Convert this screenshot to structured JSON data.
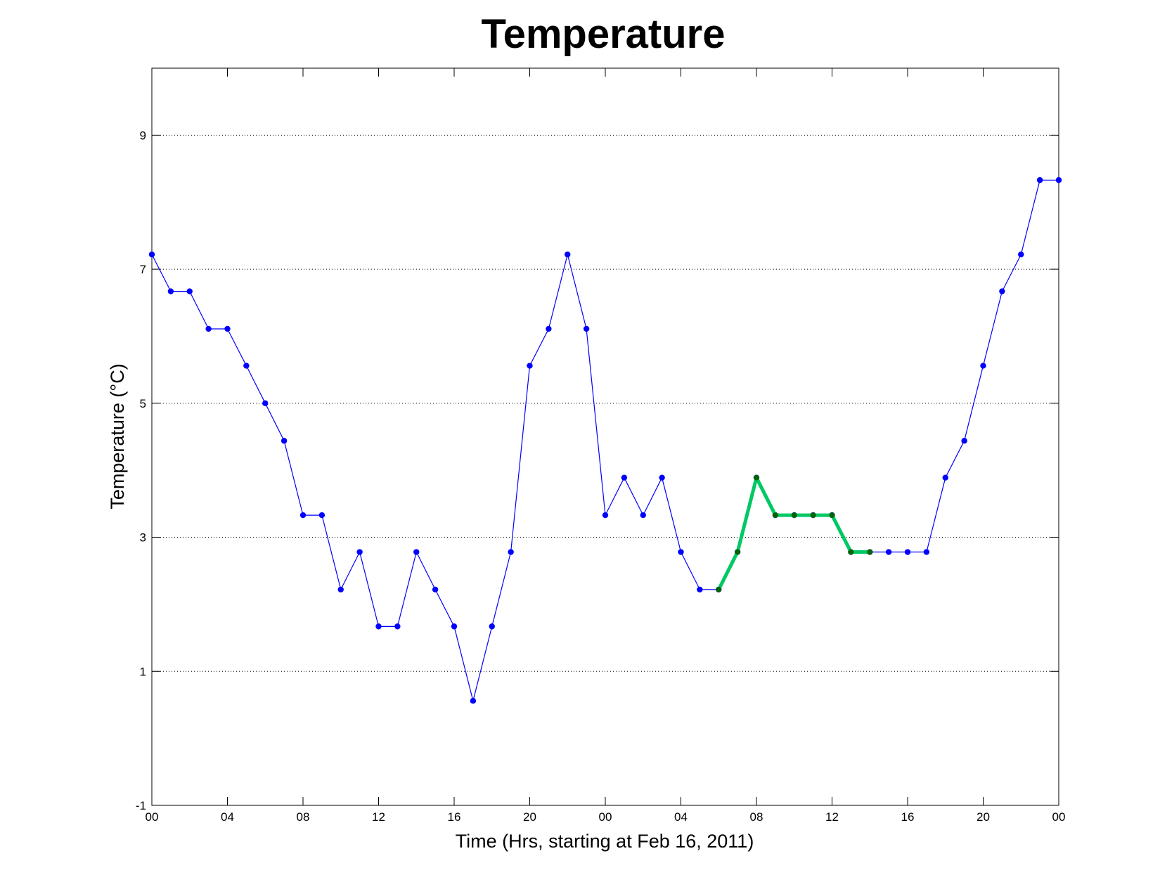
{
  "chart_data": {
    "type": "line",
    "title": "Temperature",
    "xlabel": "Time (Hrs, starting at Feb 16, 2011)",
    "ylabel": "Temperature (°C)",
    "xlim": [
      0,
      48
    ],
    "ylim": [
      -1,
      10
    ],
    "grid": "y-dotted",
    "x_ticks": [
      0,
      4,
      8,
      12,
      16,
      20,
      24,
      28,
      32,
      36,
      40,
      44,
      48
    ],
    "x_tick_labels": [
      "00",
      "04",
      "08",
      "12",
      "16",
      "20",
      "00",
      "04",
      "08",
      "12",
      "16",
      "20",
      "00"
    ],
    "y_ticks": [
      -1,
      1,
      3,
      5,
      7,
      9
    ],
    "y_tick_labels": [
      "-1",
      "1",
      "3",
      "5",
      "7",
      "9"
    ],
    "series": [
      {
        "color": "#0000ff",
        "marker_color": "#0000ff",
        "line_width": "thin",
        "x": [
          0,
          1,
          2,
          3,
          4,
          5,
          6,
          7,
          8,
          9,
          10,
          11,
          12,
          13,
          14,
          15,
          16,
          17,
          18,
          19,
          20,
          21,
          22,
          23,
          24,
          25,
          26,
          27,
          28,
          29,
          30,
          31,
          32,
          33,
          34,
          35,
          36,
          37,
          38,
          39,
          40,
          41,
          42,
          43,
          44,
          45,
          46,
          47,
          48
        ],
        "y": [
          7.22,
          6.67,
          6.67,
          6.11,
          6.11,
          5.56,
          5.0,
          4.44,
          3.33,
          3.33,
          2.22,
          2.78,
          1.67,
          1.67,
          2.78,
          2.22,
          1.67,
          0.56,
          1.67,
          2.78,
          5.56,
          6.11,
          7.22,
          6.11,
          3.33,
          3.89,
          3.33,
          3.89,
          2.78,
          2.22,
          2.22,
          2.78,
          3.89,
          3.33,
          3.33,
          3.33,
          3.33,
          2.78,
          2.78,
          2.78,
          2.78,
          2.78,
          3.89,
          4.44,
          5.56,
          6.67,
          7.22,
          8.33,
          8.33
        ]
      },
      {
        "color": "#00c864",
        "marker_color": "#006400",
        "line_width": "thick",
        "x": [
          30,
          31,
          32,
          33,
          34,
          35,
          36,
          37,
          38
        ],
        "y": [
          2.22,
          2.78,
          3.89,
          3.33,
          3.33,
          3.33,
          3.33,
          2.78,
          2.78
        ]
      }
    ]
  }
}
